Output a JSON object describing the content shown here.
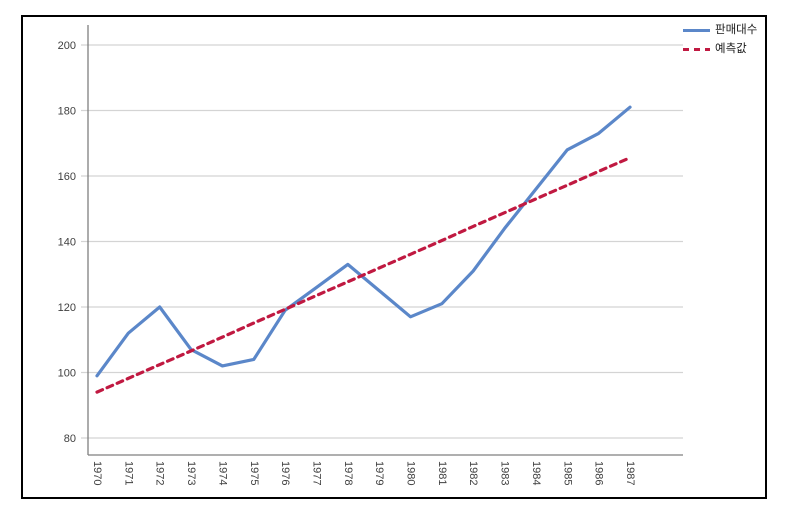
{
  "chart_data": {
    "type": "line",
    "title": "",
    "xlabel": "",
    "ylabel": "",
    "x": [
      "1970",
      "1971",
      "1972",
      "1973",
      "1974",
      "1975",
      "1976",
      "1977",
      "1978",
      "1979",
      "1980",
      "1981",
      "1982",
      "1983",
      "1984",
      "1985",
      "1986",
      "1987"
    ],
    "series": [
      {
        "name": "판매대수",
        "style": "solid",
        "color": "#5b87c9",
        "values": [
          99,
          112,
          120,
          107,
          102,
          104,
          119,
          126,
          133,
          125,
          117,
          121,
          131,
          144,
          156,
          168,
          173,
          181
        ]
      },
      {
        "name": "예측값",
        "style": "dashed",
        "color": "#c01941",
        "values": [
          94.0,
          98.2,
          102.4,
          106.6,
          110.8,
          115.1,
          119.3,
          123.5,
          127.7,
          131.9,
          136.1,
          140.3,
          144.6,
          148.8,
          153.0,
          157.2,
          161.4,
          165.6
        ]
      }
    ],
    "yticks": [
      80,
      100,
      120,
      140,
      160,
      180,
      200
    ],
    "ylim": [
      80,
      200
    ],
    "grid": "horizontal",
    "legend_position": "top-right",
    "colors": {
      "grid": "#d4d4d4",
      "axis": "#7f7f7f",
      "tick_label": "#3f3f3f",
      "frame": "#000000"
    }
  }
}
